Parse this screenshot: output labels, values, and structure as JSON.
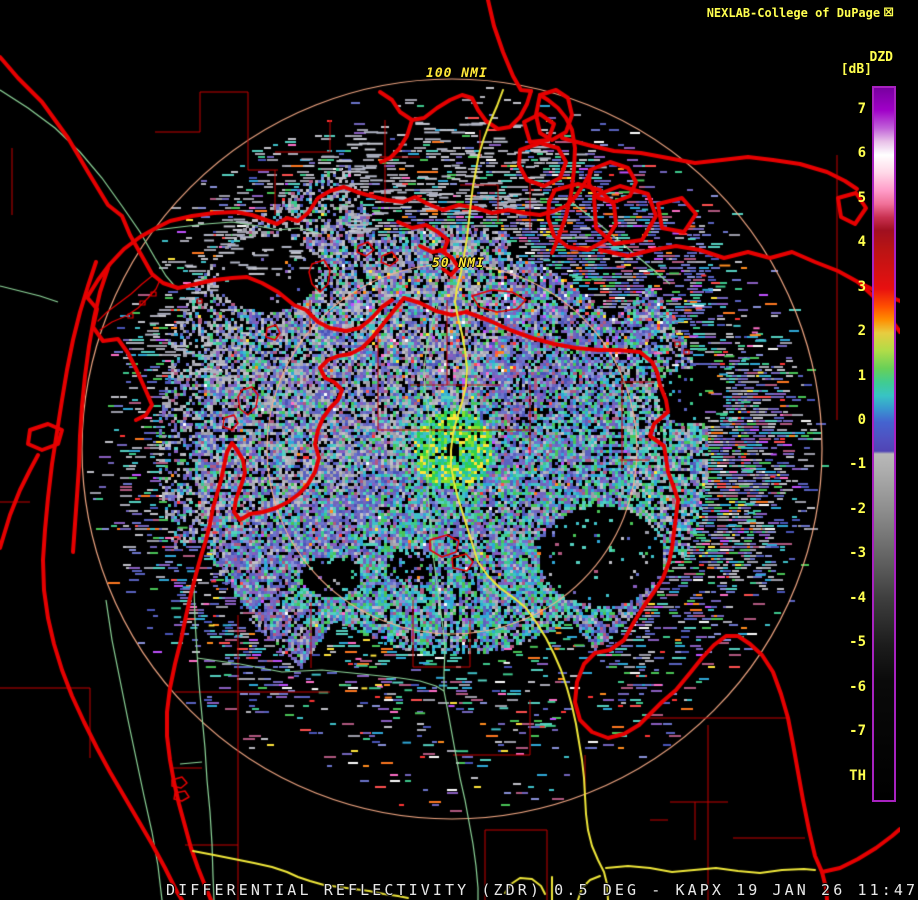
{
  "attribution": {
    "text": "NEXLAB-College of DuPage",
    "icon": "window-icon"
  },
  "colorbar": {
    "title": "DZD",
    "units": "[dB]",
    "ticks": [
      7,
      6,
      5,
      4,
      3,
      2,
      1,
      0,
      -1,
      -2,
      -3,
      -4,
      -5,
      -6,
      -7
    ],
    "bottom_label": "TH",
    "border_color": "#a822c0",
    "gradient": [
      [
        0.0,
        "#7800a0"
      ],
      [
        0.031,
        "#a000c8"
      ],
      [
        0.056,
        "#c060d8"
      ],
      [
        0.075,
        "#e8c0e8"
      ],
      [
        0.094,
        "#ffffff"
      ],
      [
        0.119,
        "#ffd8e8"
      ],
      [
        0.144,
        "#ff9cc8"
      ],
      [
        0.163,
        "#f07098"
      ],
      [
        0.182,
        "#c83050"
      ],
      [
        0.2,
        "#a01020"
      ],
      [
        0.225,
        "#b81414"
      ],
      [
        0.282,
        "#e81010"
      ],
      [
        0.307,
        "#ff5000"
      ],
      [
        0.325,
        "#ff8c00"
      ],
      [
        0.344,
        "#e8cc40"
      ],
      [
        0.369,
        "#b0dc48"
      ],
      [
        0.394,
        "#68d058"
      ],
      [
        0.413,
        "#40cc90"
      ],
      [
        0.432,
        "#38c4c4"
      ],
      [
        0.45,
        "#3898d0"
      ],
      [
        0.469,
        "#4464d0"
      ],
      [
        0.494,
        "#5050c0"
      ],
      [
        0.51,
        "#5044b4"
      ],
      [
        0.514,
        "#b8b8b8"
      ],
      [
        0.532,
        "#b0b0b0"
      ],
      [
        0.595,
        "#8c8c8c"
      ],
      [
        0.658,
        "#646464"
      ],
      [
        0.721,
        "#3c3c3c"
      ],
      [
        0.783,
        "#1c1c1c"
      ],
      [
        0.833,
        "#0a0a0a"
      ],
      [
        1.0,
        "#000000"
      ]
    ]
  },
  "rings": [
    {
      "label": "100 NMI",
      "radius_nmi": 100
    },
    {
      "label": "50 NMI",
      "radius_nmi": 50
    }
  ],
  "radar": {
    "product": "Differential Reflectivity",
    "product_code": "ZDR",
    "elevation": "0.5 DEG",
    "site": "KAPX",
    "date": "19 JAN 26",
    "time": "11:47"
  },
  "status_bar": {
    "text": "DIFFERENTIAL REFLECTIVITY (ZDR) 0.5 DEG - KAPX 19 JAN 26 11:47"
  },
  "colors": {
    "background": "#000000",
    "shoreline": "#e60000",
    "county_line": "#c40000",
    "road_major": "#f0e83a",
    "road_secondary": "#8fd89b",
    "range_ring": "#ffb08a",
    "label_yellow": "#ffff4f",
    "status_text": "#e8e8e8"
  }
}
